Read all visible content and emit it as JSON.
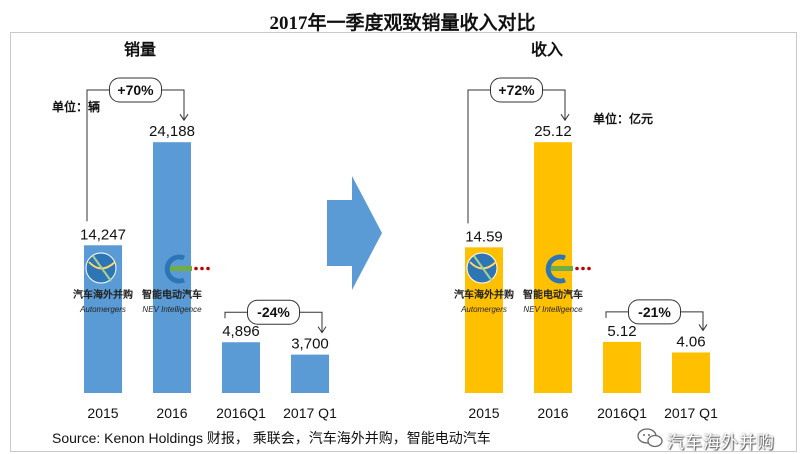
{
  "title": "2017年一季度观致销量收入对比",
  "source": "Source: Kenon Holdings 财报， 乘联会，汽车海外并购，智能电动汽车",
  "watermark": "汽车海外并购",
  "logos": [
    {
      "name": "汽车海外并购",
      "sub": "Automergers"
    },
    {
      "name": "智能电动汽车",
      "sub": "NEV Intelligence"
    }
  ],
  "colors": {
    "sales_bar": "#5b9bd5",
    "revenue_bar": "#ffc000",
    "arrow": "#5b9bd5",
    "frame": "#c9c9c9"
  },
  "chart_data": [
    {
      "type": "bar",
      "title": "销量",
      "unit_label": "单位：辆",
      "categories": [
        "2015",
        "2016",
        "2016Q1",
        "2017 Q1"
      ],
      "values": [
        14247,
        24188,
        4896,
        3700
      ],
      "value_labels": [
        "14,247",
        "24,188",
        "4,896",
        "3,700"
      ],
      "annotations": [
        {
          "text": "+70%",
          "from": "2015",
          "to": "2016"
        },
        {
          "text": "-24%",
          "from": "2016Q1",
          "to": "2017 Q1"
        }
      ]
    },
    {
      "type": "bar",
      "title": "收入",
      "unit_label": "单位：亿元",
      "categories": [
        "2015",
        "2016",
        "2016Q1",
        "2017 Q1"
      ],
      "values": [
        14.59,
        25.12,
        5.12,
        4.06
      ],
      "value_labels": [
        "14.59",
        "25.12",
        "5.12",
        "4.06"
      ],
      "annotations": [
        {
          "text": "+72%",
          "from": "2015",
          "to": "2016"
        },
        {
          "text": "-21%",
          "from": "2016Q1",
          "to": "2017 Q1"
        }
      ]
    }
  ]
}
